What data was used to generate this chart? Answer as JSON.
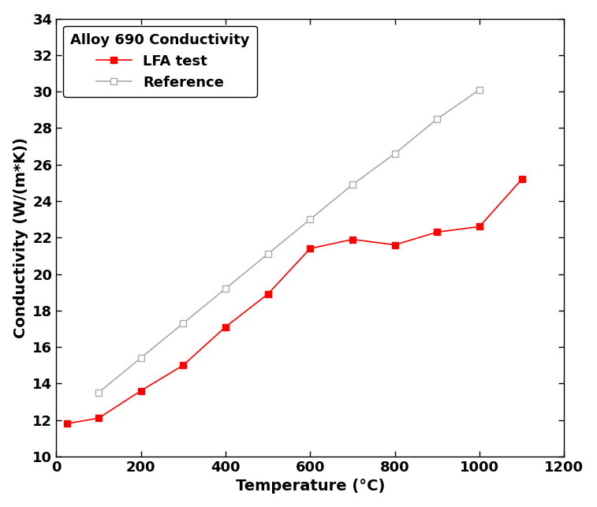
{
  "lfa_x": [
    25,
    100,
    200,
    300,
    400,
    500,
    600,
    700,
    800,
    900,
    1000,
    1100
  ],
  "lfa_y": [
    11.8,
    12.1,
    13.6,
    15.0,
    17.1,
    18.9,
    21.4,
    21.9,
    21.6,
    22.3,
    22.6,
    25.2
  ],
  "ref_x": [
    100,
    200,
    300,
    400,
    500,
    600,
    700,
    800,
    900,
    1000
  ],
  "ref_y": [
    13.5,
    15.4,
    17.3,
    19.2,
    21.1,
    23.0,
    24.9,
    26.6,
    28.5,
    30.1
  ],
  "lfa_color": "#ff0000",
  "ref_color": "#aaaaaa",
  "lfa_label": "LFA test",
  "ref_label": "Reference",
  "legend_title": "Alloy 690 Conductivity",
  "xlabel": "Temperature (°C)",
  "ylabel": "Conductivity (W/(m*K))",
  "xlim": [
    0,
    1200
  ],
  "ylim": [
    10,
    34
  ],
  "xticks": [
    0,
    200,
    400,
    600,
    800,
    1000,
    1200
  ],
  "yticks": [
    10,
    12,
    14,
    16,
    18,
    20,
    22,
    24,
    26,
    28,
    30,
    32,
    34
  ],
  "background_color": "#ffffff",
  "marker_size": 6,
  "linewidth": 1.2
}
